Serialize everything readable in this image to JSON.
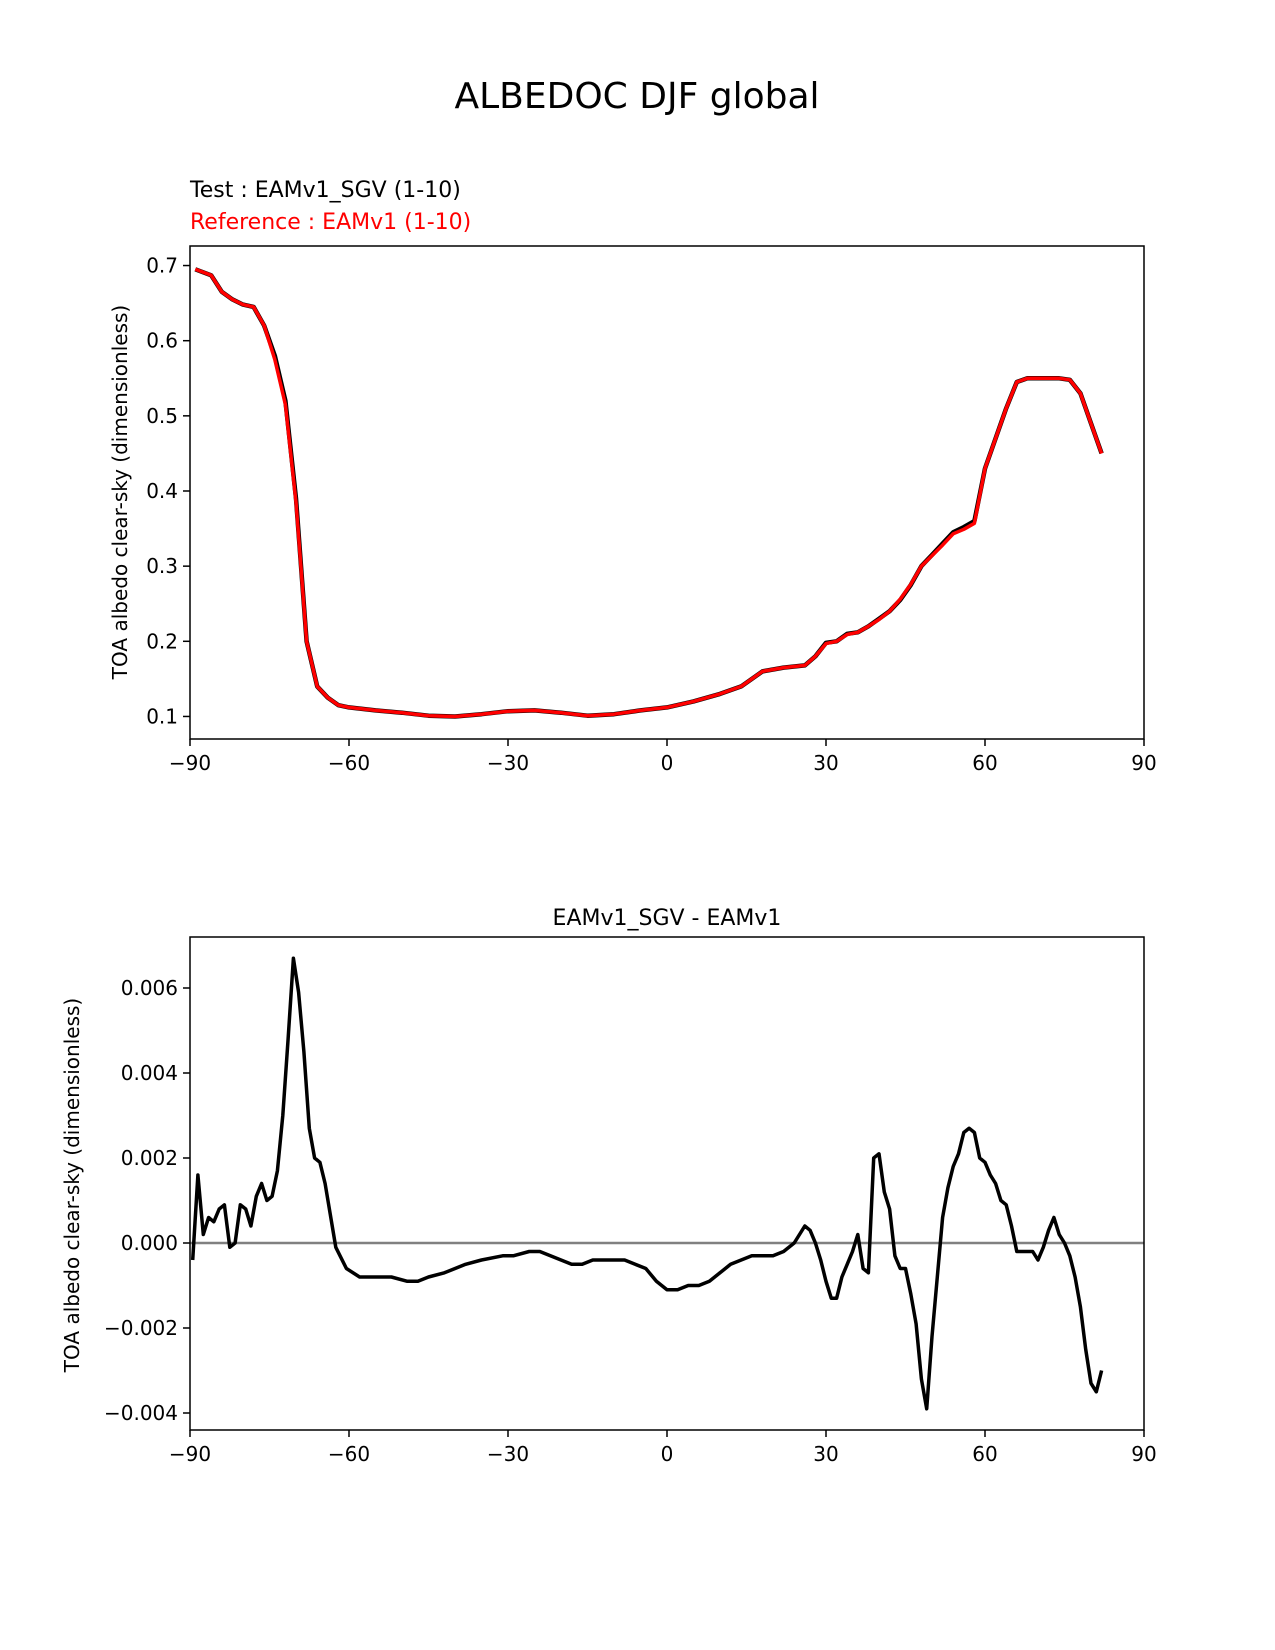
{
  "figure_title": "ALBEDOC DJF global",
  "chart_data": [
    {
      "type": "line",
      "title_test": "Test : EAMv1_SGV (1-10)",
      "title_reference": "Reference : EAMv1 (1-10)",
      "xlabel": "",
      "ylabel": "TOA albedo clear-sky (dimensionless)",
      "xlim": [
        -90,
        90
      ],
      "ylim": [
        0.07,
        0.726
      ],
      "xticks": [
        -90,
        -60,
        -30,
        0,
        30,
        60,
        90
      ],
      "xtick_labels": [
        "−90",
        "−60",
        "−30",
        "0",
        "30",
        "60",
        "90"
      ],
      "yticks": [
        0.1,
        0.2,
        0.3,
        0.4,
        0.5,
        0.6,
        0.7
      ],
      "ytick_labels": [
        "0.1",
        "0.2",
        "0.3",
        "0.4",
        "0.5",
        "0.6",
        "0.7"
      ],
      "x": [
        -89,
        -86,
        -84,
        -82,
        -80,
        -78,
        -76,
        -74,
        -72,
        -70,
        -68,
        -66,
        -64,
        -62,
        -60,
        -55,
        -50,
        -45,
        -40,
        -35,
        -30,
        -25,
        -20,
        -15,
        -10,
        -5,
        0,
        5,
        10,
        14,
        18,
        22,
        26,
        28,
        30,
        32,
        34,
        36,
        38,
        40,
        42,
        44,
        46,
        48,
        50,
        52,
        54,
        56,
        58,
        60,
        62,
        64,
        66,
        68,
        70,
        72,
        74,
        76,
        78,
        80,
        82
      ],
      "series": [
        {
          "name": "Test : EAMv1_SGV (1-10)",
          "color": "#000000",
          "values": [
            0.695,
            0.687,
            0.665,
            0.655,
            0.648,
            0.645,
            0.62,
            0.58,
            0.52,
            0.39,
            0.2,
            0.14,
            0.125,
            0.115,
            0.112,
            0.108,
            0.105,
            0.101,
            0.1,
            0.103,
            0.107,
            0.108,
            0.105,
            0.101,
            0.103,
            0.108,
            0.112,
            0.12,
            0.13,
            0.14,
            0.16,
            0.165,
            0.168,
            0.18,
            0.198,
            0.2,
            0.21,
            0.212,
            0.22,
            0.23,
            0.24,
            0.255,
            0.275,
            0.3,
            0.315,
            0.33,
            0.345,
            0.352,
            0.36,
            0.43,
            0.47,
            0.51,
            0.545,
            0.55,
            0.55,
            0.55,
            0.55,
            0.548,
            0.53,
            0.49,
            0.45
          ]
        },
        {
          "name": "Reference : EAMv1 (1-10)",
          "color": "#ff0000",
          "values": [
            0.695,
            0.687,
            0.665,
            0.655,
            0.648,
            0.645,
            0.62,
            0.575,
            0.515,
            0.385,
            0.2,
            0.14,
            0.125,
            0.115,
            0.112,
            0.108,
            0.105,
            0.101,
            0.1,
            0.103,
            0.107,
            0.108,
            0.105,
            0.101,
            0.103,
            0.108,
            0.112,
            0.12,
            0.13,
            0.14,
            0.16,
            0.165,
            0.168,
            0.18,
            0.197,
            0.2,
            0.209,
            0.212,
            0.22,
            0.229,
            0.24,
            0.256,
            0.276,
            0.3,
            0.314,
            0.328,
            0.343,
            0.349,
            0.357,
            0.43,
            0.47,
            0.51,
            0.545,
            0.55,
            0.55,
            0.55,
            0.55,
            0.548,
            0.53,
            0.49,
            0.45
          ]
        }
      ]
    },
    {
      "type": "line",
      "title": "EAMv1_SGV - EAMv1",
      "xlabel": "",
      "ylabel": "TOA albedo clear-sky (dimensionless)",
      "xlim": [
        -90,
        90
      ],
      "ylim": [
        -0.0044,
        0.0072
      ],
      "xticks": [
        -90,
        -60,
        -30,
        0,
        30,
        60,
        90
      ],
      "xtick_labels": [
        "−90",
        "−60",
        "−30",
        "0",
        "30",
        "60",
        "90"
      ],
      "yticks": [
        -0.004,
        -0.002,
        0.0,
        0.002,
        0.004,
        0.006
      ],
      "ytick_labels": [
        "−0.004",
        "−0.002",
        "0.000",
        "0.002",
        "0.004",
        "0.006"
      ],
      "zero_line": 0,
      "x": [
        -89.5,
        -88.5,
        -87.5,
        -86.5,
        -85.5,
        -84.5,
        -83.5,
        -82.5,
        -81.5,
        -80.5,
        -79.5,
        -78.5,
        -77.5,
        -76.5,
        -75.5,
        -74.5,
        -73.5,
        -72.5,
        -71.5,
        -70.5,
        -69.5,
        -68.5,
        -67.5,
        -66.5,
        -65.5,
        -64.5,
        -62.5,
        -60.5,
        -58,
        -55,
        -52,
        -49,
        -47,
        -45,
        -42,
        -38,
        -35,
        -31,
        -29,
        -26,
        -24,
        -22,
        -20,
        -18,
        -16,
        -14,
        -12,
        -10,
        -8,
        -6,
        -4,
        -2,
        0,
        2,
        4,
        6,
        8,
        10,
        12,
        14,
        16,
        18,
        20,
        22,
        24,
        26,
        27,
        28,
        29,
        30,
        31,
        32,
        33,
        34,
        35,
        36,
        37,
        38,
        39,
        40,
        41,
        42,
        43,
        44,
        45,
        46,
        47,
        48,
        49,
        50,
        51,
        52,
        53,
        54,
        55,
        56,
        57,
        58,
        59,
        60,
        61,
        62,
        63,
        64,
        65,
        66,
        67,
        68,
        69,
        70,
        71,
        72,
        73,
        74,
        75,
        76,
        77,
        78,
        79,
        80,
        81,
        82
      ],
      "series": [
        {
          "name": "EAMv1_SGV - EAMv1",
          "color": "#000000",
          "values": [
            -0.0004,
            0.0016,
            0.0002,
            0.0006,
            0.0005,
            0.0008,
            0.0009,
            -0.0001,
            0.0,
            0.0009,
            0.0008,
            0.0004,
            0.0011,
            0.0014,
            0.001,
            0.0011,
            0.0017,
            0.003,
            0.0048,
            0.0067,
            0.0059,
            0.0045,
            0.0027,
            0.002,
            0.0019,
            0.0014,
            -0.0001,
            -0.0006,
            -0.0008,
            -0.0008,
            -0.0008,
            -0.0009,
            -0.0009,
            -0.0008,
            -0.0007,
            -0.0005,
            -0.0004,
            -0.0003,
            -0.0003,
            -0.0002,
            -0.0002,
            -0.0003,
            -0.0004,
            -0.0005,
            -0.0005,
            -0.0004,
            -0.0004,
            -0.0004,
            -0.0004,
            -0.0005,
            -0.0006,
            -0.0009,
            -0.0011,
            -0.0011,
            -0.001,
            -0.001,
            -0.0009,
            -0.0007,
            -0.0005,
            -0.0004,
            -0.0003,
            -0.0003,
            -0.0003,
            -0.0002,
            0.0,
            0.0004,
            0.0003,
            0.0,
            -0.0004,
            -0.0009,
            -0.0013,
            -0.0013,
            -0.0008,
            -0.0005,
            -0.0002,
            0.0002,
            -0.0006,
            -0.0007,
            0.002,
            0.0021,
            0.0012,
            0.0008,
            -0.0003,
            -0.0006,
            -0.0006,
            -0.0012,
            -0.0019,
            -0.0032,
            -0.0039,
            -0.0022,
            -0.0008,
            0.0006,
            0.0013,
            0.0018,
            0.0021,
            0.0026,
            0.0027,
            0.0026,
            0.002,
            0.0019,
            0.0016,
            0.0014,
            0.001,
            0.0009,
            0.0004,
            -0.0002,
            -0.0002,
            -0.0002,
            -0.0002,
            -0.0004,
            -0.0001,
            0.0003,
            0.0006,
            0.0002,
            0.0,
            -0.0003,
            -0.0008,
            -0.0015,
            -0.0025,
            -0.0033,
            -0.0035,
            -0.003
          ]
        }
      ]
    }
  ]
}
